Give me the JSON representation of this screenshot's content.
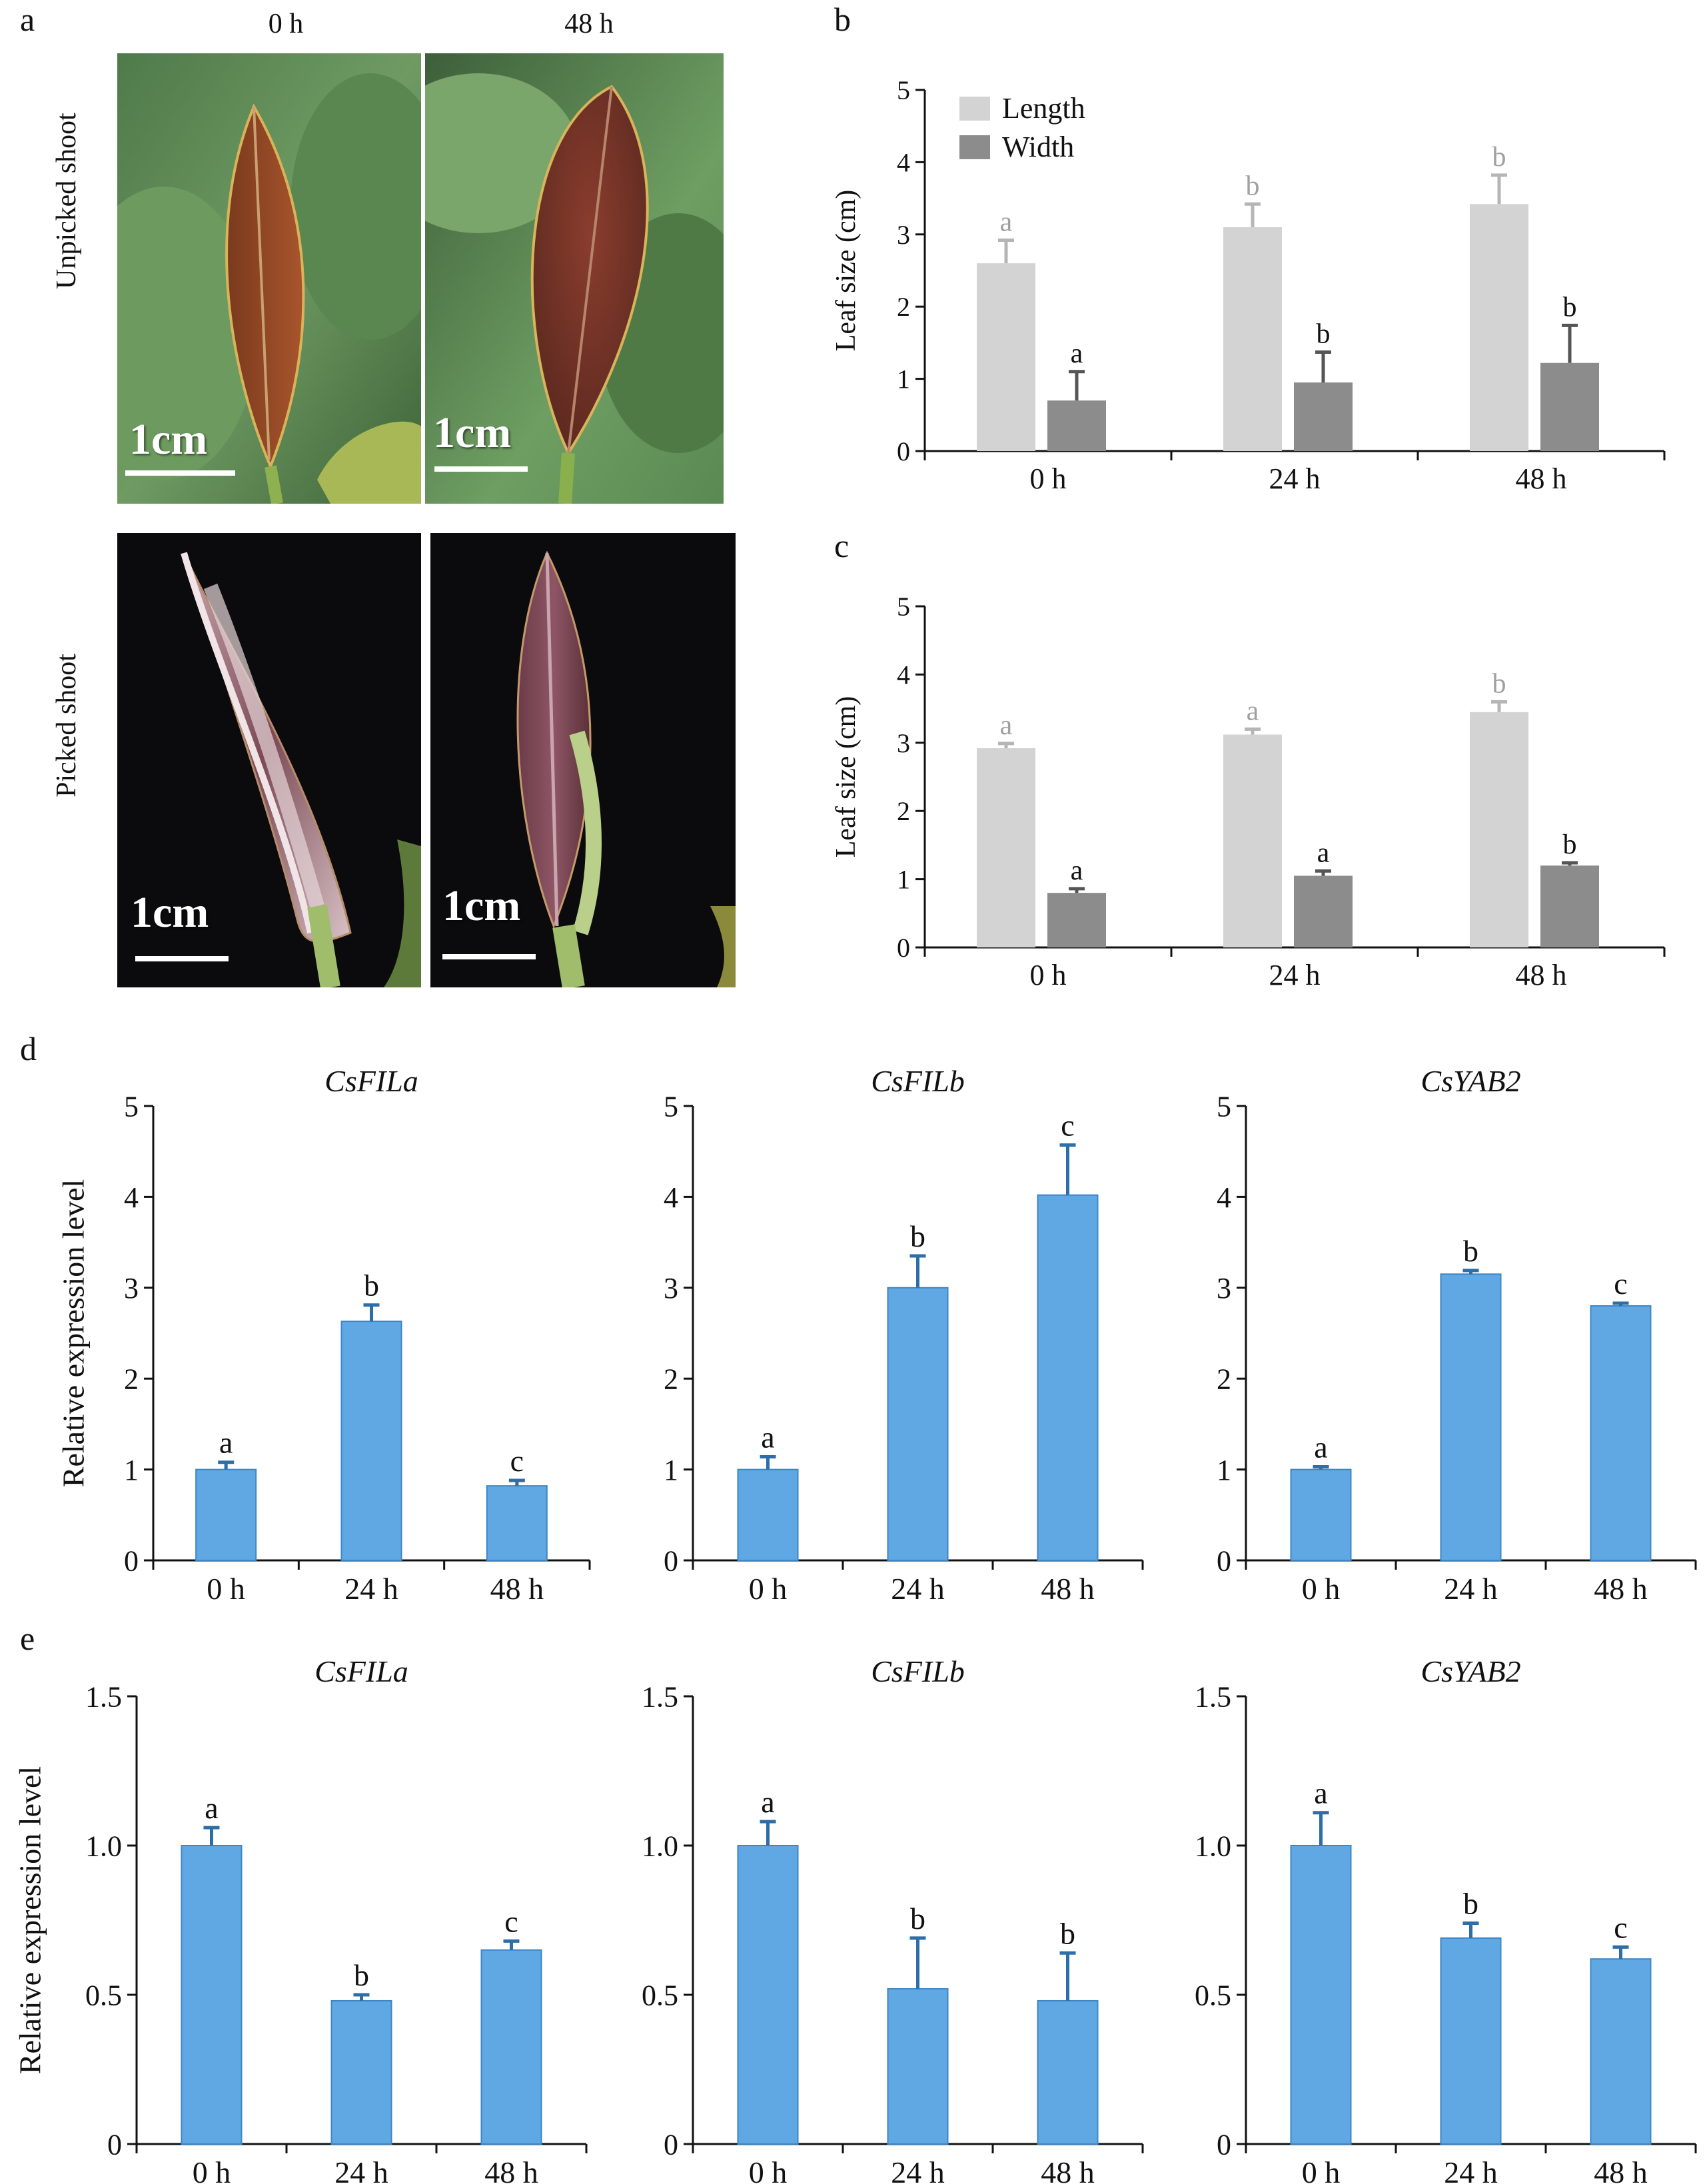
{
  "panel_labels": {
    "a": "a",
    "b": "b",
    "c": "c",
    "d": "d",
    "e": "e"
  },
  "panel_a": {
    "col_headers": [
      "0 h",
      "48 h"
    ],
    "row_labels": [
      "Unpicked shoot",
      "Picked shoot"
    ],
    "scale_label": "1cm"
  },
  "chart_data": [
    {
      "id": "b",
      "type": "bar",
      "categories": [
        "0 h",
        "24 h",
        "48 h"
      ],
      "series": [
        {
          "name": "Length",
          "color": "#d3d3d3",
          "values": [
            2.6,
            3.1,
            3.42
          ],
          "errors": [
            0.32,
            0.32,
            0.4
          ],
          "letters": [
            "a",
            "b",
            "b"
          ]
        },
        {
          "name": "Width",
          "color": "#8c8c8c",
          "values": [
            0.7,
            0.95,
            1.22
          ],
          "errors": [
            0.4,
            0.42,
            0.52
          ],
          "letters": [
            "a",
            "b",
            "b"
          ]
        }
      ],
      "title": "",
      "xlabel": "",
      "ylabel": "Leaf size (cm)",
      "ylim": [
        0,
        5
      ],
      "yticks": [
        "0",
        "1",
        "2",
        "3",
        "4",
        "5"
      ],
      "legend": "top-left"
    },
    {
      "id": "c",
      "type": "bar",
      "categories": [
        "0 h",
        "24 h",
        "48 h"
      ],
      "series": [
        {
          "name": "Length",
          "color": "#d3d3d3",
          "values": [
            2.92,
            3.12,
            3.45
          ],
          "errors": [
            0.07,
            0.08,
            0.15
          ],
          "letters": [
            "a",
            "a",
            "b"
          ]
        },
        {
          "name": "Width",
          "color": "#8c8c8c",
          "values": [
            0.8,
            1.05,
            1.2
          ],
          "errors": [
            0.06,
            0.07,
            0.04
          ],
          "letters": [
            "a",
            "a",
            "b"
          ]
        }
      ],
      "title": "",
      "xlabel": "",
      "ylabel": "Leaf size (cm)",
      "ylim": [
        0,
        5
      ],
      "yticks": [
        "0",
        "1",
        "2",
        "3",
        "4",
        "5"
      ]
    },
    {
      "id": "d1",
      "type": "bar",
      "title": "CsFILa",
      "categories": [
        "0 h",
        "24 h",
        "48 h"
      ],
      "series": [
        {
          "color": "#5fa8e3",
          "values": [
            1.0,
            2.63,
            0.82
          ],
          "errors": [
            0.08,
            0.18,
            0.06
          ],
          "letters": [
            "a",
            "b",
            "c"
          ]
        }
      ],
      "ylabel": "Relative expression level",
      "ylim": [
        0,
        5
      ],
      "yticks": [
        "0",
        "1",
        "2",
        "3",
        "4",
        "5"
      ]
    },
    {
      "id": "d2",
      "type": "bar",
      "title": "CsFILb",
      "categories": [
        "0 h",
        "24 h",
        "48 h"
      ],
      "series": [
        {
          "color": "#5fa8e3",
          "values": [
            1.0,
            3.0,
            4.02
          ],
          "errors": [
            0.14,
            0.35,
            0.55
          ],
          "letters": [
            "a",
            "b",
            "c"
          ]
        }
      ],
      "ylabel": "",
      "ylim": [
        0,
        5
      ],
      "yticks": [
        "0",
        "1",
        "2",
        "3",
        "4",
        "5"
      ]
    },
    {
      "id": "d3",
      "type": "bar",
      "title": "CsYAB2",
      "categories": [
        "0 h",
        "24 h",
        "48 h"
      ],
      "series": [
        {
          "color": "#5fa8e3",
          "values": [
            1.0,
            3.15,
            2.8
          ],
          "errors": [
            0.03,
            0.04,
            0.03
          ],
          "letters": [
            "a",
            "b",
            "c"
          ]
        }
      ],
      "ylabel": "",
      "ylim": [
        0,
        5
      ],
      "yticks": [
        "0",
        "1",
        "2",
        "3",
        "4",
        "5"
      ]
    },
    {
      "id": "e1",
      "type": "bar",
      "title": "CsFILa",
      "categories": [
        "0 h",
        "24 h",
        "48 h"
      ],
      "series": [
        {
          "color": "#5fa8e3",
          "values": [
            1.0,
            0.48,
            0.65
          ],
          "errors": [
            0.06,
            0.02,
            0.03
          ],
          "letters": [
            "a",
            "b",
            "c"
          ]
        }
      ],
      "ylabel": "Relative expression level",
      "ylim": [
        0,
        1.5
      ],
      "yticks": [
        "0",
        "0.5",
        "1.0",
        "1.5"
      ]
    },
    {
      "id": "e2",
      "type": "bar",
      "title": "CsFILb",
      "categories": [
        "0 h",
        "24 h",
        "48 h"
      ],
      "series": [
        {
          "color": "#5fa8e3",
          "values": [
            1.0,
            0.52,
            0.48
          ],
          "errors": [
            0.08,
            0.17,
            0.16
          ],
          "letters": [
            "a",
            "b",
            "b"
          ]
        }
      ],
      "ylabel": "",
      "ylim": [
        0,
        1.5
      ],
      "yticks": [
        "0",
        "0.5",
        "1.0",
        "1.5"
      ]
    },
    {
      "id": "e3",
      "type": "bar",
      "title": "CsYAB2",
      "categories": [
        "0 h",
        "24 h",
        "48 h"
      ],
      "series": [
        {
          "color": "#5fa8e3",
          "values": [
            1.0,
            0.69,
            0.62
          ],
          "errors": [
            0.11,
            0.05,
            0.04
          ],
          "letters": [
            "a",
            "b",
            "c"
          ]
        }
      ],
      "ylabel": "",
      "ylim": [
        0,
        1.5
      ],
      "yticks": [
        "0",
        "0.5",
        "1.0",
        "1.5"
      ]
    }
  ]
}
